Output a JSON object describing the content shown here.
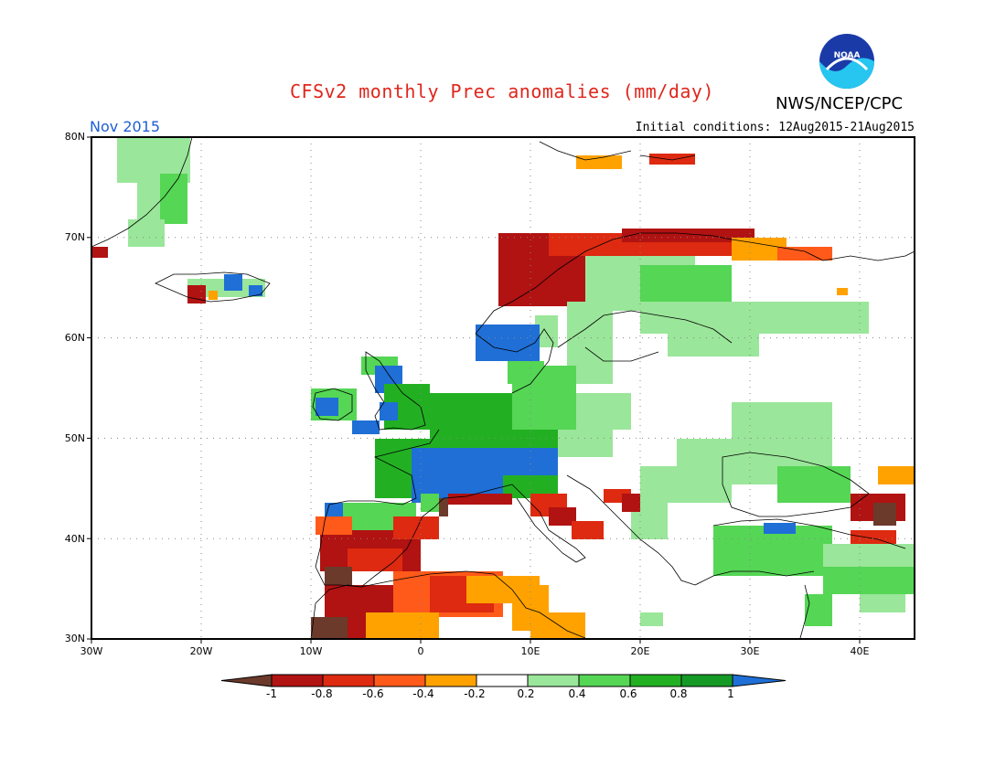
{
  "header": {
    "title": "CFSv2 monthly Prec anomalies (mm/day)",
    "org": "NWS/NCEP/CPC",
    "logo_text": "NOAA",
    "valid_month": "Nov 2015",
    "initial_conditions": "Initial conditions: 12Aug2015-21Aug2015"
  },
  "map": {
    "lat_labels": [
      "80N",
      "70N",
      "60N",
      "50N",
      "40N",
      "30N"
    ],
    "lon_labels": [
      "30W",
      "20W",
      "10W",
      "0",
      "10E",
      "20E",
      "30E",
      "40E"
    ],
    "region": "Europe",
    "lon_range": [
      -30,
      45
    ],
    "lat_range": [
      30,
      80
    ]
  },
  "colorbar": {
    "labels": [
      "-1",
      "-0.8",
      "-0.6",
      "-0.4",
      "-0.2",
      "0.2",
      "0.4",
      "0.6",
      "0.8",
      "1"
    ],
    "colors": [
      "#6b3a2a",
      "#b11212",
      "#dd2a10",
      "#ff5a1a",
      "#ffa200",
      "#ffffff",
      "#9ae69a",
      "#55d655",
      "#22b022",
      "#159a26",
      "#1f6fd6"
    ]
  }
}
